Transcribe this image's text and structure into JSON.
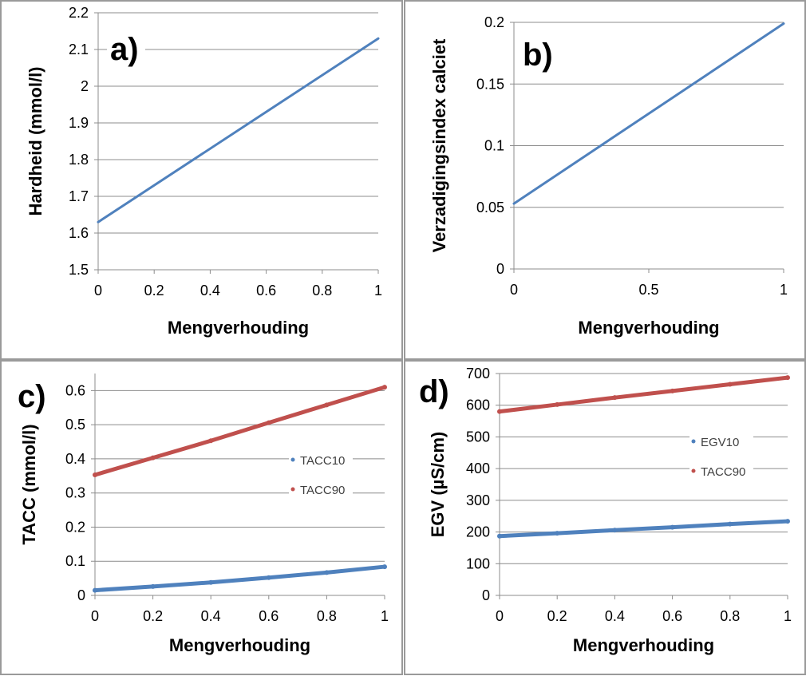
{
  "chart_data": [
    {
      "panel": "a)",
      "type": "line",
      "xlabel": "Mengverhouding",
      "ylabel": "Hardheid (mmol/l)",
      "xlim": [
        0,
        1
      ],
      "ylim": [
        1.5,
        2.2
      ],
      "xticks": [
        "0",
        "0.2",
        "0.4",
        "0.6",
        "0.8",
        "1"
      ],
      "yticks": [
        "1.5",
        "1.6",
        "1.7",
        "1.8",
        "1.9",
        "2",
        "2.1",
        "2.2"
      ],
      "grid": true,
      "series": [
        {
          "x": [
            0,
            1
          ],
          "y": [
            1.63,
            2.13
          ],
          "color": "#4F81BD"
        }
      ]
    },
    {
      "panel": "b)",
      "type": "line",
      "xlabel": "Mengverhouding",
      "ylabel": "Verzadigingsindex calciet",
      "xlim": [
        0,
        1
      ],
      "ylim": [
        0,
        0.2
      ],
      "xticks": [
        "0",
        "0.5",
        "1"
      ],
      "yticks": [
        "0",
        "0.05",
        "0.1",
        "0.15",
        "0.2"
      ],
      "grid": true,
      "series": [
        {
          "x": [
            0,
            1
          ],
          "y": [
            0.053,
            0.199
          ],
          "color": "#4F81BD"
        }
      ]
    },
    {
      "panel": "c)",
      "type": "scatter",
      "xlabel": "Mengverhouding",
      "ylabel": "TACC (mmol/l)",
      "xlim": [
        0,
        1
      ],
      "ylim": [
        0,
        0.65
      ],
      "xticks": [
        "0",
        "0.2",
        "0.4",
        "0.6",
        "0.8",
        "1"
      ],
      "yticks": [
        "0",
        "0.1",
        "0.2",
        "0.3",
        "0.4",
        "0.5",
        "0.6"
      ],
      "grid": true,
      "legend": "right",
      "series": [
        {
          "name": "TACC10",
          "x": [
            0,
            0.2,
            0.4,
            0.6,
            0.8,
            1
          ],
          "y": [
            0.015,
            0.026,
            0.038,
            0.052,
            0.067,
            0.084
          ],
          "color": "#4F81BD"
        },
        {
          "name": "TACC90",
          "x": [
            0,
            0.2,
            0.4,
            0.6,
            0.8,
            1
          ],
          "y": [
            0.353,
            0.403,
            0.453,
            0.506,
            0.558,
            0.61
          ],
          "color": "#C0504D"
        }
      ]
    },
    {
      "panel": "d)",
      "type": "scatter",
      "xlabel": "Mengverhouding",
      "ylabel": "EGV (µS/cm)",
      "xlim": [
        0,
        1
      ],
      "ylim": [
        0,
        700
      ],
      "xticks": [
        "0",
        "0.2",
        "0.4",
        "0.6",
        "0.8",
        "1"
      ],
      "yticks": [
        "0",
        "100",
        "200",
        "300",
        "400",
        "500",
        "600",
        "700"
      ],
      "grid": true,
      "legend": "right",
      "series": [
        {
          "name": "EGV10",
          "x": [
            0,
            0.2,
            0.4,
            0.6,
            0.8,
            1
          ],
          "y": [
            187,
            196,
            206,
            215,
            225,
            234
          ],
          "color": "#4F81BD"
        },
        {
          "name": "TACC90",
          "x": [
            0,
            0.2,
            0.4,
            0.6,
            0.8,
            1
          ],
          "y": [
            580,
            602,
            624,
            645,
            666,
            687
          ],
          "color": "#C0504D"
        }
      ]
    }
  ]
}
